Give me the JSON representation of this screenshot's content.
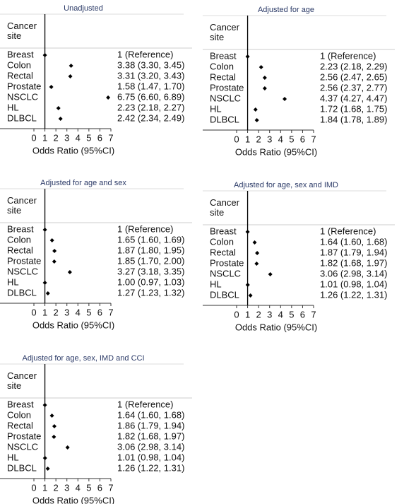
{
  "chart_data": [
    {
      "type": "forest",
      "title": "Unadjusted",
      "header": "Cancer site",
      "xlabel": "Odds Ratio (95%CI)",
      "categories": [
        "Breast",
        "Colon",
        "Rectal",
        "Prostate",
        "NSCLC",
        "HL",
        "DLBCL"
      ],
      "values": [
        1,
        3.38,
        3.31,
        1.58,
        6.75,
        2.23,
        2.42
      ],
      "value_labels": [
        "1 (Reference)",
        "3.38 (3.30, 3.45)",
        "3.31 (3.20, 3.43)",
        "1.58 (1.47, 1.70)",
        "6.75 (6.60, 6.89)",
        "2.23 (2.18, 2.27)",
        "2.42 (2.34, 2.49)"
      ],
      "xlim": [
        0,
        7
      ],
      "xticks": [
        0,
        1,
        2,
        3,
        4,
        5,
        6,
        7
      ],
      "reference_line": 1,
      "color": "#000000"
    },
    {
      "type": "forest",
      "title": "Adjusted for age",
      "header": "Cancer site",
      "xlabel": "Odds Ratio (95%CI)",
      "categories": [
        "Breast",
        "Colon",
        "Rectal",
        "Prostate",
        "NSCLC",
        "HL",
        "DLBCL"
      ],
      "values": [
        1,
        2.23,
        2.56,
        2.56,
        4.37,
        1.72,
        1.84
      ],
      "value_labels": [
        "1 (Reference)",
        "2.23 (2.18, 2.29)",
        "2.56 (2.47, 2.65)",
        "2.56 (2.37, 2.77)",
        "4.37 (4.27, 4.47)",
        "1.72 (1.68, 1.75)",
        "1.84 (1.78, 1.89)"
      ],
      "xlim": [
        0,
        7
      ],
      "xticks": [
        0,
        1,
        2,
        3,
        4,
        5,
        6,
        7
      ],
      "reference_line": 1,
      "color": "#000000"
    },
    {
      "type": "forest",
      "title": "Adjusted for age and sex",
      "header": "Cancer site",
      "xlabel": "Odds Ratio (95%CI)",
      "categories": [
        "Breast",
        "Colon",
        "Rectal",
        "Prostate",
        "NSCLC",
        "HL",
        "DLBCL"
      ],
      "values": [
        1,
        1.65,
        1.87,
        1.85,
        3.27,
        1.0,
        1.27
      ],
      "value_labels": [
        "1 (Reference)",
        "1.65 (1.60, 1.69)",
        "1.87 (1.80, 1.95)",
        "1.85 (1.70, 2.00)",
        "3.27 (3.18, 3.35)",
        "1.00 (0.97, 1.03)",
        "1.27 (1.23, 1.32)"
      ],
      "xlim": [
        0,
        7
      ],
      "xticks": [
        0,
        1,
        2,
        3,
        4,
        5,
        6,
        7
      ],
      "reference_line": 1,
      "color": "#000000"
    },
    {
      "type": "forest",
      "title": "Adjusted for age, sex and IMD",
      "header": "Cancer site",
      "xlabel": "Odds Ratio (95%CI)",
      "categories": [
        "Breast",
        "Colon",
        "Rectal",
        "Prostate",
        "NSCLC",
        "HL",
        "DLBCL"
      ],
      "values": [
        1,
        1.64,
        1.87,
        1.82,
        3.06,
        1.01,
        1.26
      ],
      "value_labels": [
        "1 (Reference)",
        "1.64 (1.60, 1.68)",
        "1.87 (1.79, 1.94)",
        "1.82 (1.68, 1.97)",
        "3.06 (2.98, 3.14)",
        "1.01 (0.98, 1.04)",
        "1.26 (1.22, 1.31)"
      ],
      "xlim": [
        0,
        7
      ],
      "xticks": [
        0,
        1,
        2,
        3,
        4,
        5,
        6,
        7
      ],
      "reference_line": 1,
      "color": "#000000"
    },
    {
      "type": "forest",
      "title": "Adjusted for age, sex, IMD and CCI",
      "header": "Cancer site",
      "xlabel": "Odds Ratio (95%CI)",
      "categories": [
        "Breast",
        "Colon",
        "Rectal",
        "Prostate",
        "NSCLC",
        "HL",
        "DLBCL"
      ],
      "values": [
        1,
        1.64,
        1.86,
        1.82,
        3.06,
        1.01,
        1.26
      ],
      "value_labels": [
        "1 (Reference)",
        "1.64 (1.60, 1.68)",
        "1.86 (1.79, 1.94)",
        "1.82 (1.68, 1.97)",
        "3.06 (2.98, 3.14)",
        "1.01 (0.98, 1.04)",
        "1.26 (1.22, 1.31)"
      ],
      "xlim": [
        0,
        7
      ],
      "xticks": [
        0,
        1,
        2,
        3,
        4,
        5,
        6,
        7
      ],
      "reference_line": 1,
      "color": "#000000"
    }
  ]
}
